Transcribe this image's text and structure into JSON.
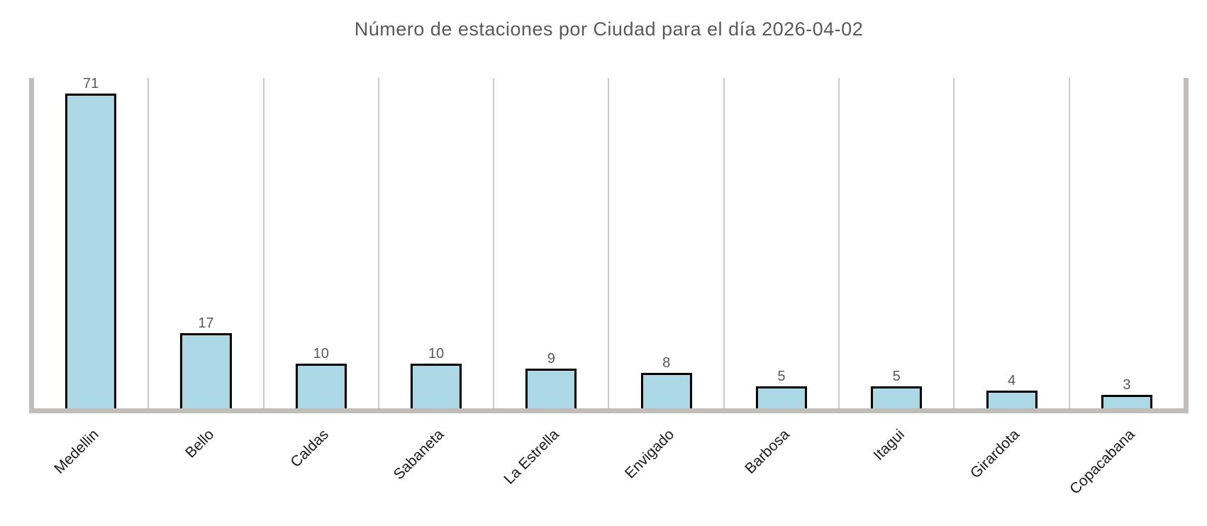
{
  "chart_data": {
    "type": "bar",
    "title": "Número de estaciones por Ciudad para el día 2026-04-02",
    "categories": [
      "Medellin",
      "Bello",
      "Caldas",
      "Sabaneta",
      "La Estrella",
      "Envigado",
      "Barbosa",
      "Itagui",
      "Girardota",
      "Copacabana"
    ],
    "values": [
      71,
      17,
      10,
      10,
      9,
      8,
      5,
      5,
      4,
      3
    ],
    "xlabel": "",
    "ylabel": "",
    "ylim": [
      0,
      74.5
    ],
    "grid": "vertical-between-categories",
    "legend": "none",
    "value_labels_shown": true,
    "x_tick_rotation_deg": 45,
    "colors": {
      "bar_fill": "#ADD8E6",
      "bar_edge": "#000000",
      "spine": "#c1bdb9",
      "gridline": "#cbcbcb",
      "title_text": "#595959",
      "value_label_text": "#595959",
      "tick_label_text": "#191919",
      "background": "#ffffff"
    }
  }
}
